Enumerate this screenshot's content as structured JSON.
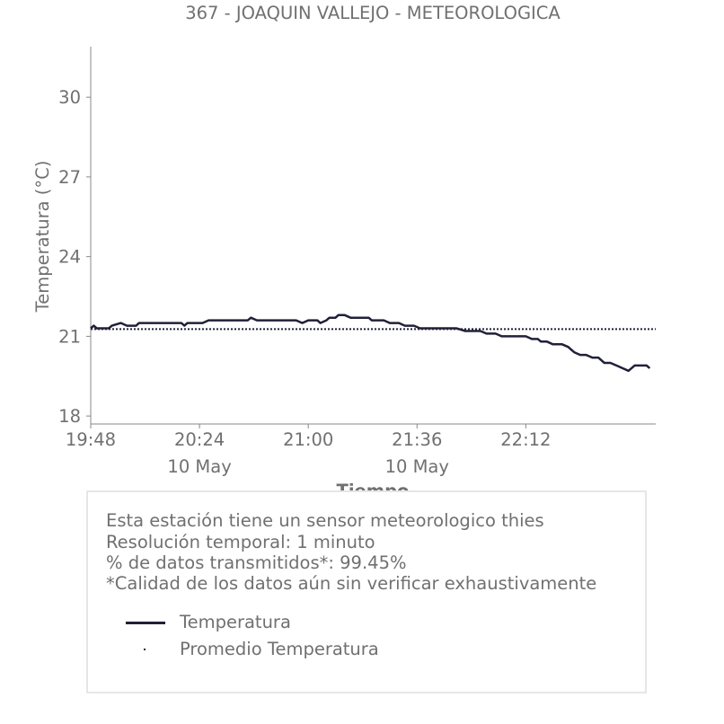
{
  "chart_data": {
    "type": "line",
    "title": "367 - JOAQUIN VALLEJO - METEOROLOGICA",
    "xlabel": "Tiempo",
    "ylabel": "Temperatura (°C)",
    "ylim": [
      17.7,
      31.9
    ],
    "xlim": [
      "19:48",
      "22:55"
    ],
    "grid": false,
    "y_ticks": [
      18,
      21,
      24,
      27,
      30
    ],
    "x_ticks": [
      {
        "time": "19:48",
        "label": "19:48",
        "sublabel": ""
      },
      {
        "time": "20:24",
        "label": "20:24",
        "sublabel": "10 May"
      },
      {
        "time": "21:00",
        "label": "21:00",
        "sublabel": ""
      },
      {
        "time": "21:36",
        "label": "21:36",
        "sublabel": "10 May"
      },
      {
        "time": "22:12",
        "label": "22:12",
        "sublabel": ""
      }
    ],
    "series": [
      {
        "name": "Temperatura",
        "color": "#20203a",
        "style": "solid",
        "points": [
          [
            "19:48",
            21.3
          ],
          [
            "19:49",
            21.4
          ],
          [
            "19:50",
            21.3
          ],
          [
            "19:54",
            21.3
          ],
          [
            "19:55",
            21.4
          ],
          [
            "19:58",
            21.5
          ],
          [
            "20:00",
            21.4
          ],
          [
            "20:03",
            21.4
          ],
          [
            "20:04",
            21.5
          ],
          [
            "20:18",
            21.5
          ],
          [
            "20:19",
            21.4
          ],
          [
            "20:20",
            21.5
          ],
          [
            "20:25",
            21.5
          ],
          [
            "20:27",
            21.6
          ],
          [
            "20:40",
            21.6
          ],
          [
            "20:41",
            21.7
          ],
          [
            "20:43",
            21.6
          ],
          [
            "20:56",
            21.6
          ],
          [
            "20:58",
            21.5
          ],
          [
            "21:00",
            21.6
          ],
          [
            "21:03",
            21.6
          ],
          [
            "21:04",
            21.5
          ],
          [
            "21:06",
            21.6
          ],
          [
            "21:07",
            21.7
          ],
          [
            "21:09",
            21.7
          ],
          [
            "21:10",
            21.8
          ],
          [
            "21:12",
            21.8
          ],
          [
            "21:14",
            21.7
          ],
          [
            "21:20",
            21.7
          ],
          [
            "21:21",
            21.6
          ],
          [
            "21:25",
            21.6
          ],
          [
            "21:27",
            21.5
          ],
          [
            "21:30",
            21.5
          ],
          [
            "21:32",
            21.4
          ],
          [
            "21:35",
            21.4
          ],
          [
            "21:37",
            21.3
          ],
          [
            "21:49",
            21.3
          ],
          [
            "21:52",
            21.2
          ],
          [
            "21:57",
            21.2
          ],
          [
            "21:59",
            21.1
          ],
          [
            "22:02",
            21.1
          ],
          [
            "22:04",
            21.0
          ],
          [
            "22:12",
            21.0
          ],
          [
            "22:14",
            20.9
          ],
          [
            "22:16",
            20.9
          ],
          [
            "22:17",
            20.8
          ],
          [
            "22:19",
            20.8
          ],
          [
            "22:21",
            20.7
          ],
          [
            "22:24",
            20.7
          ],
          [
            "22:26",
            20.6
          ],
          [
            "22:28",
            20.4
          ],
          [
            "22:30",
            20.3
          ],
          [
            "22:32",
            20.3
          ],
          [
            "22:34",
            20.2
          ],
          [
            "22:36",
            20.2
          ],
          [
            "22:38",
            20.0
          ],
          [
            "22:40",
            20.0
          ],
          [
            "22:42",
            19.9
          ],
          [
            "22:44",
            19.8
          ],
          [
            "22:46",
            19.7
          ],
          [
            "22:48",
            19.9
          ],
          [
            "22:50",
            19.9
          ],
          [
            "22:52",
            19.9
          ],
          [
            "22:53",
            19.8
          ]
        ]
      },
      {
        "name": "Promedio Temperatura",
        "color": "#20203a",
        "style": "dotted",
        "points": [
          [
            "19:48",
            21.27
          ],
          [
            "22:55",
            21.27
          ]
        ]
      }
    ],
    "legend": {
      "placement": "bottom, inside info box"
    }
  },
  "info": {
    "line1": "Esta estación tiene un sensor meteorologico thies",
    "line2": "Resolución temporal: 1 minuto",
    "line3": "% de datos transmitidos*: 99.45%",
    "line4": "*Calidad de los datos aún sin verificar exhaustivamente"
  },
  "legend": {
    "series1": "Temperatura",
    "series2": "Promedio Temperatura"
  }
}
